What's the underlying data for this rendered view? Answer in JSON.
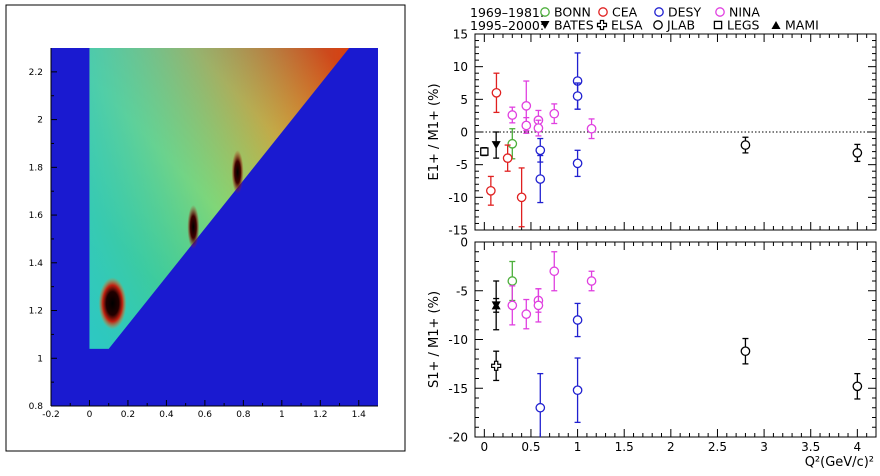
{
  "legend": {
    "row1_label": "1969–1981:",
    "row2_label": "1995–2000:",
    "entries": [
      {
        "name": "BONN",
        "color": "#4caf3a",
        "marker": "open-circle"
      },
      {
        "name": "CEA",
        "color": "#e02020",
        "marker": "open-circle"
      },
      {
        "name": "DESY",
        "color": "#2020d0",
        "marker": "open-circle"
      },
      {
        "name": "NINA",
        "color": "#e040e0",
        "marker": "open-circle"
      },
      {
        "name": "BATES",
        "color": "#000000",
        "marker": "filled-triangle-down"
      },
      {
        "name": "ELSA",
        "color": "#000000",
        "marker": "open-cross"
      },
      {
        "name": "JLAB",
        "color": "#000000",
        "marker": "open-circle"
      },
      {
        "name": "LEGS",
        "color": "#000000",
        "marker": "open-square"
      },
      {
        "name": "MAMI",
        "color": "#000000",
        "marker": "filled-triangle-up"
      }
    ]
  },
  "chart_data": [
    {
      "type": "heatmap",
      "title": "",
      "xlabel": "",
      "ylabel": "",
      "xlim": [
        -0.2,
        1.5
      ],
      "ylim": [
        0.8,
        2.3
      ],
      "xticks": [
        -0.2,
        0,
        0.2,
        0.4,
        0.6,
        0.8,
        1,
        1.2,
        1.4
      ],
      "yticks": [
        0.8,
        1,
        1.2,
        1.4,
        1.6,
        1.8,
        2,
        2.2
      ],
      "xtick_labels": [
        "-0.2",
        "0",
        "0.2",
        "0.4",
        "0.6",
        "0.8",
        "1",
        "1.2",
        "1.4"
      ],
      "ytick_labels": [
        "0.8",
        "1",
        "1.2",
        "1.4",
        "1.6",
        "1.8",
        "2",
        "2.2"
      ],
      "colormap": [
        "#1a1ad0",
        "#20c8c8",
        "#40d060",
        "#c8e040",
        "#f0a020",
        "#d83010",
        "#000000"
      ],
      "coverage_edges": {
        "left_edge_x": 0,
        "diagonal_from": [
          0.1,
          1.04
        ],
        "diagonal_to": [
          1.35,
          2.3
        ]
      },
      "hot_spots": [
        {
          "x": 0.12,
          "y": 1.23,
          "intensity": "max"
        },
        {
          "x": 0.54,
          "y": 1.55,
          "intensity": "high"
        },
        {
          "x": 0.77,
          "y": 1.78,
          "intensity": "high"
        }
      ]
    },
    {
      "type": "scatter",
      "ylabel": "E1+ / M1+ (%)",
      "xlabel": "",
      "xlim": [
        -0.1,
        4.2
      ],
      "ylim": [
        -15,
        15
      ],
      "yticks": [
        -15,
        -10,
        -5,
        0,
        5,
        10,
        15
      ],
      "ytick_labels": [
        "-15",
        "-10",
        "-5",
        "0",
        "5",
        "10",
        "15"
      ],
      "zero_line": true,
      "series": [
        {
          "name": "BONN",
          "points": [
            {
              "x": 0.3,
              "y": -1.8,
              "err": 2.3
            }
          ]
        },
        {
          "name": "CEA",
          "points": [
            {
              "x": 0.07,
              "y": -9.0,
              "err": 2.2
            },
            {
              "x": 0.13,
              "y": 6.0,
              "err": 3.0
            },
            {
              "x": 0.25,
              "y": -4.0,
              "err": 2.0
            },
            {
              "x": 0.4,
              "y": -10.0,
              "err": 4.5
            }
          ]
        },
        {
          "name": "DESY",
          "points": [
            {
              "x": 0.6,
              "y": -2.8,
              "err": 1.8
            },
            {
              "x": 0.6,
              "y": -7.2,
              "err": 3.6
            },
            {
              "x": 1.0,
              "y": 7.8,
              "err": 4.3
            },
            {
              "x": 1.0,
              "y": 5.5,
              "err": 2.0
            },
            {
              "x": 1.0,
              "y": -4.8,
              "err": 2.0
            }
          ]
        },
        {
          "name": "NINA",
          "points": [
            {
              "x": 0.3,
              "y": 2.6,
              "err": 1.2
            },
            {
              "x": 0.45,
              "y": 4.0,
              "err": 3.8
            },
            {
              "x": 0.45,
              "y": 1.0,
              "err": 1.2
            },
            {
              "x": 0.58,
              "y": 1.8,
              "err": 1.5
            },
            {
              "x": 0.58,
              "y": 0.6,
              "err": 1.2
            },
            {
              "x": 0.75,
              "y": 2.8,
              "err": 1.5
            },
            {
              "x": 1.15,
              "y": 0.5,
              "err": 1.5
            }
          ]
        },
        {
          "name": "BATES",
          "points": [
            {
              "x": 0.127,
              "y": -2.0,
              "err": 2.0
            }
          ]
        },
        {
          "name": "LEGS",
          "points": [
            {
              "x": 0.0,
              "y": -3.0,
              "err": 0.6
            }
          ]
        },
        {
          "name": "JLAB",
          "points": [
            {
              "x": 2.8,
              "y": -2.0,
              "err": 1.2
            },
            {
              "x": 4.0,
              "y": -3.2,
              "err": 1.3
            }
          ]
        }
      ]
    },
    {
      "type": "scatter",
      "ylabel": "S1+ / M1+ (%)",
      "xlabel": "Q²(GeV/c)²",
      "xlim": [
        -0.1,
        4.2
      ],
      "ylim": [
        -20,
        0
      ],
      "xticks": [
        0,
        0.5,
        1,
        1.5,
        2,
        2.5,
        3,
        3.5,
        4
      ],
      "xtick_labels": [
        "0",
        "0.5",
        "1",
        "1.5",
        "2",
        "2.5",
        "3",
        "3.5",
        "4"
      ],
      "yticks": [
        -20,
        -15,
        -10,
        -5,
        0
      ],
      "ytick_labels": [
        "-20",
        "-15",
        "-10",
        "-5",
        "0"
      ],
      "series": [
        {
          "name": "BONN",
          "points": [
            {
              "x": 0.3,
              "y": -4.0,
              "err": 2.0
            }
          ]
        },
        {
          "name": "DESY",
          "points": [
            {
              "x": 0.6,
              "y": -17.0,
              "err": 3.5
            },
            {
              "x": 1.0,
              "y": -8.0,
              "err": 1.7
            },
            {
              "x": 1.0,
              "y": -15.2,
              "err": 3.3
            }
          ]
        },
        {
          "name": "NINA",
          "points": [
            {
              "x": 0.3,
              "y": -6.5,
              "err": 2.0
            },
            {
              "x": 0.45,
              "y": -7.4,
              "err": 1.5
            },
            {
              "x": 0.58,
              "y": -6.0,
              "err": 1.2
            },
            {
              "x": 0.58,
              "y": -6.5,
              "err": 1.7
            },
            {
              "x": 0.75,
              "y": -3.0,
              "err": 2.0
            },
            {
              "x": 1.15,
              "y": -4.0,
              "err": 1.0
            }
          ]
        },
        {
          "name": "BATES",
          "points": [
            {
              "x": 0.127,
              "y": -6.5,
              "err": 2.5
            }
          ]
        },
        {
          "name": "MAMI",
          "points": [
            {
              "x": 0.127,
              "y": -6.5,
              "err": 0.7
            }
          ]
        },
        {
          "name": "ELSA",
          "points": [
            {
              "x": 0.127,
              "y": -12.7,
              "err": 1.5
            }
          ]
        },
        {
          "name": "JLAB",
          "points": [
            {
              "x": 2.8,
              "y": -11.2,
              "err": 1.3
            },
            {
              "x": 4.0,
              "y": -14.8,
              "err": 1.3
            }
          ]
        }
      ]
    }
  ]
}
